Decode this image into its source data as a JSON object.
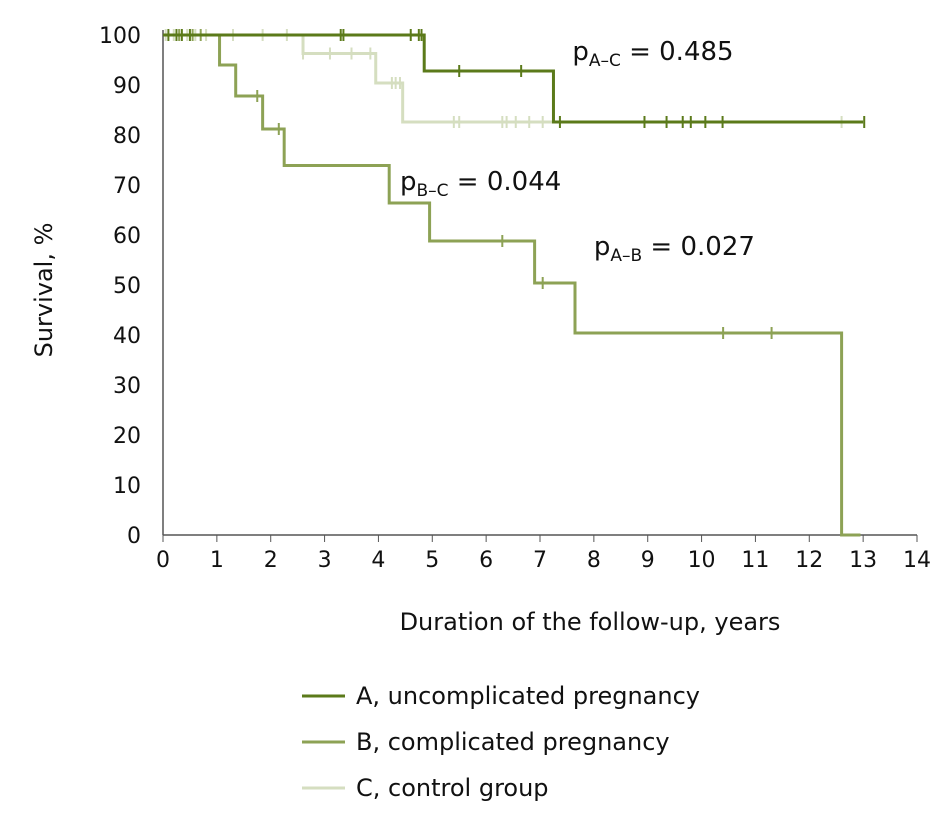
{
  "chart_data": {
    "type": "line",
    "subtype": "kaplan-meier step",
    "xlabel": "Duration of the follow-up, years",
    "ylabel": "Survival, %",
    "xlim": [
      0,
      14
    ],
    "ylim": [
      0,
      100
    ],
    "xticks": [
      0,
      1,
      2,
      3,
      4,
      5,
      6,
      7,
      8,
      9,
      10,
      11,
      12,
      13,
      14
    ],
    "yticks": [
      0,
      10,
      20,
      30,
      40,
      50,
      60,
      70,
      80,
      90,
      100
    ],
    "grid": false,
    "legend_position": "bottom",
    "series": [
      {
        "name": "A, uncomplicated pregnancy",
        "color": "#5b7a1a",
        "steps": [
          [
            0,
            100
          ],
          [
            4.85,
            92.8
          ],
          [
            7.25,
            82.6
          ],
          [
            13.0,
            82.6
          ]
        ],
        "censored": [
          0.1,
          0.25,
          0.35,
          0.5,
          3.3,
          3.35,
          4.6,
          4.75,
          4.8,
          5.5,
          6.65,
          7.37,
          8.94,
          9.35,
          9.65,
          9.8,
          10.07,
          10.39,
          13.02
        ]
      },
      {
        "name": "B, complicated pregnancy",
        "color": "#8da255",
        "steps": [
          [
            0,
            100
          ],
          [
            1.05,
            94.0
          ],
          [
            1.35,
            87.8
          ],
          [
            1.85,
            81.2
          ],
          [
            2.25,
            73.9
          ],
          [
            4.2,
            66.4
          ],
          [
            4.95,
            58.8
          ],
          [
            6.9,
            50.4
          ],
          [
            7.65,
            40.4
          ],
          [
            12.6,
            0
          ],
          [
            12.95,
            0
          ]
        ],
        "censored": [
          0.3,
          0.55,
          0.7,
          1.75,
          2.15,
          6.3,
          7.05,
          10.4,
          11.3
        ]
      },
      {
        "name": "C, control group",
        "color": "#d5dec0",
        "steps": [
          [
            0,
            100
          ],
          [
            2.6,
            96.3
          ],
          [
            3.95,
            90.4
          ],
          [
            4.45,
            82.6
          ],
          [
            13.0,
            82.6
          ]
        ],
        "censored": [
          0.05,
          0.2,
          0.45,
          0.6,
          0.8,
          1.3,
          1.85,
          2.3,
          2.6,
          3.1,
          3.5,
          3.85,
          4.25,
          4.32,
          4.4,
          5.4,
          5.5,
          6.3,
          6.38,
          6.55,
          6.8,
          7.05,
          12.6
        ]
      }
    ],
    "annotations": [
      {
        "main": "p",
        "sub": "A–C",
        "rest": " = 0.485",
        "x": 7.6,
        "y": 95
      },
      {
        "main": "p",
        "sub": "B–C",
        "rest": " = 0.044",
        "x": 4.4,
        "y": 69
      },
      {
        "main": "p",
        "sub": "A–B",
        "rest": " = 0.027",
        "x": 8.0,
        "y": 56
      }
    ]
  }
}
